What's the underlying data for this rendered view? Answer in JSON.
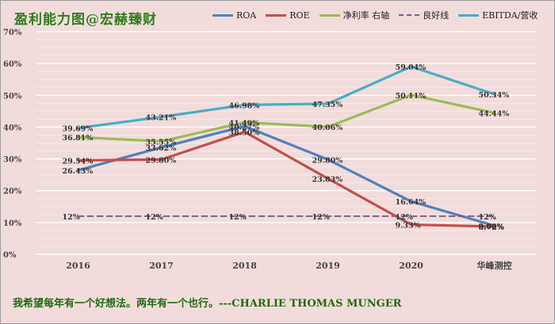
{
  "header": {
    "title": "盈利能力图@宏赫臻财"
  },
  "footer": {
    "quote": "我希望每年有一个好想法。两年有一个也行。---CHARLIE THOMAS MUNGER"
  },
  "chart_data": {
    "type": "line",
    "title": "盈利能力图@宏赫臻财",
    "categories": [
      "2016",
      "2017",
      "2018",
      "2019",
      "2020",
      "华峰测控"
    ],
    "ylim": [
      0,
      70
    ],
    "yticks": [
      "0%",
      "10%",
      "20%",
      "30%",
      "40%",
      "50%",
      "60%",
      "70%"
    ],
    "grid": true,
    "legend_position": "top",
    "series": [
      {
        "name": "ROA",
        "color": "#4f81bd",
        "dashed": false,
        "values": [
          26.43,
          33.62,
          40.27,
          29.8,
          16.64,
          9.0
        ],
        "labels": [
          "26.43%",
          "33.62%",
          "40.27%",
          "29.80%",
          "16.64%",
          "9.00%"
        ]
      },
      {
        "name": "ROE",
        "color": "#c0504d",
        "dashed": false,
        "values": [
          29.54,
          29.8,
          38.5,
          23.83,
          9.33,
          8.72
        ],
        "labels": [
          "29.54%",
          "29.80%",
          "38.50%",
          "23.83%",
          "9.33%",
          "8.72%"
        ]
      },
      {
        "name": "净利率 右轴",
        "color": "#9bbb59",
        "dashed": false,
        "values": [
          36.81,
          35.55,
          41.49,
          40.06,
          50.11,
          44.44
        ],
        "labels": [
          "36.81%",
          "35.55%",
          "41.49%",
          "40.06%",
          "50.11%",
          "44.44%"
        ]
      },
      {
        "name": "良好线",
        "color": "#7b5f8f",
        "dashed": true,
        "values": [
          12,
          12,
          12,
          12,
          12,
          12
        ],
        "labels": [
          "12%",
          "12%",
          "12%",
          "12%",
          "12%",
          "12%"
        ]
      },
      {
        "name": "EBITDA/营收",
        "color": "#4bacc6",
        "dashed": false,
        "values": [
          39.69,
          43.21,
          46.98,
          47.35,
          59.04,
          50.34
        ],
        "labels": [
          "39.69%",
          "43.21%",
          "46.98%",
          "47.35%",
          "59.04%",
          "50.34%"
        ]
      }
    ]
  }
}
